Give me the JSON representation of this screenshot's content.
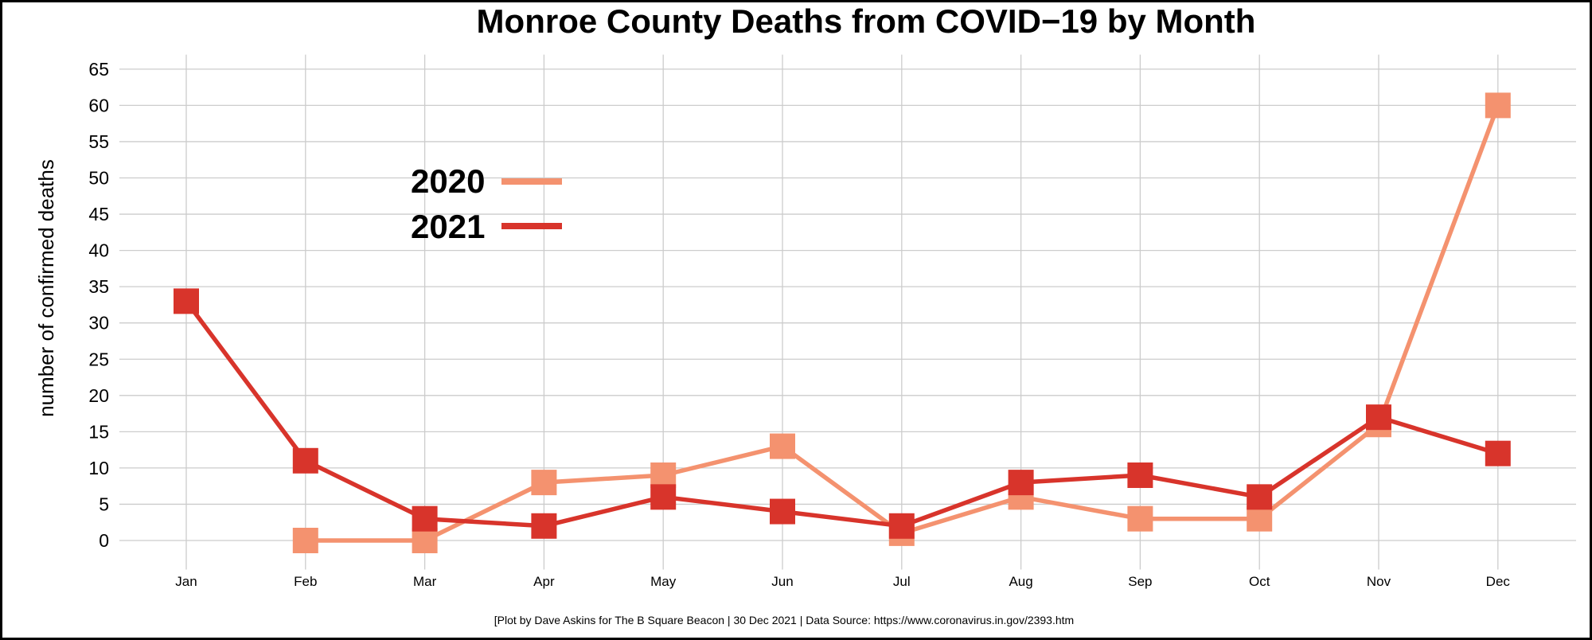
{
  "chart_data": {
    "type": "line",
    "title": "Monroe County Deaths from COVID−19 by Month",
    "xlabel": "",
    "ylabel": "number of confirmed deaths",
    "categories": [
      "Jan",
      "Feb",
      "Mar",
      "Apr",
      "May",
      "Jun",
      "Jul",
      "Aug",
      "Sep",
      "Oct",
      "Nov",
      "Dec"
    ],
    "y_ticks": [
      "0",
      "5",
      "10",
      "15",
      "20",
      "25",
      "30",
      "35",
      "40",
      "45",
      "50",
      "55",
      "60",
      "65"
    ],
    "ylim": [
      -4,
      67
    ],
    "grid": true,
    "legend_position": "upper-left",
    "marker": "square",
    "series": [
      {
        "name": "2020",
        "color": "#f4926f",
        "values": [
          null,
          0,
          0,
          8,
          9,
          13,
          1,
          6,
          3,
          3,
          16,
          60
        ]
      },
      {
        "name": "2021",
        "color": "#d8342b",
        "values": [
          33,
          11,
          3,
          2,
          6,
          4,
          2,
          8,
          9,
          6,
          17,
          12
        ]
      }
    ],
    "caption": "[Plot by Dave Askins for The B Square Beacon | 30 Dec 2021 | Data Source: https://www.coronavirus.in.gov/2393.htm"
  }
}
